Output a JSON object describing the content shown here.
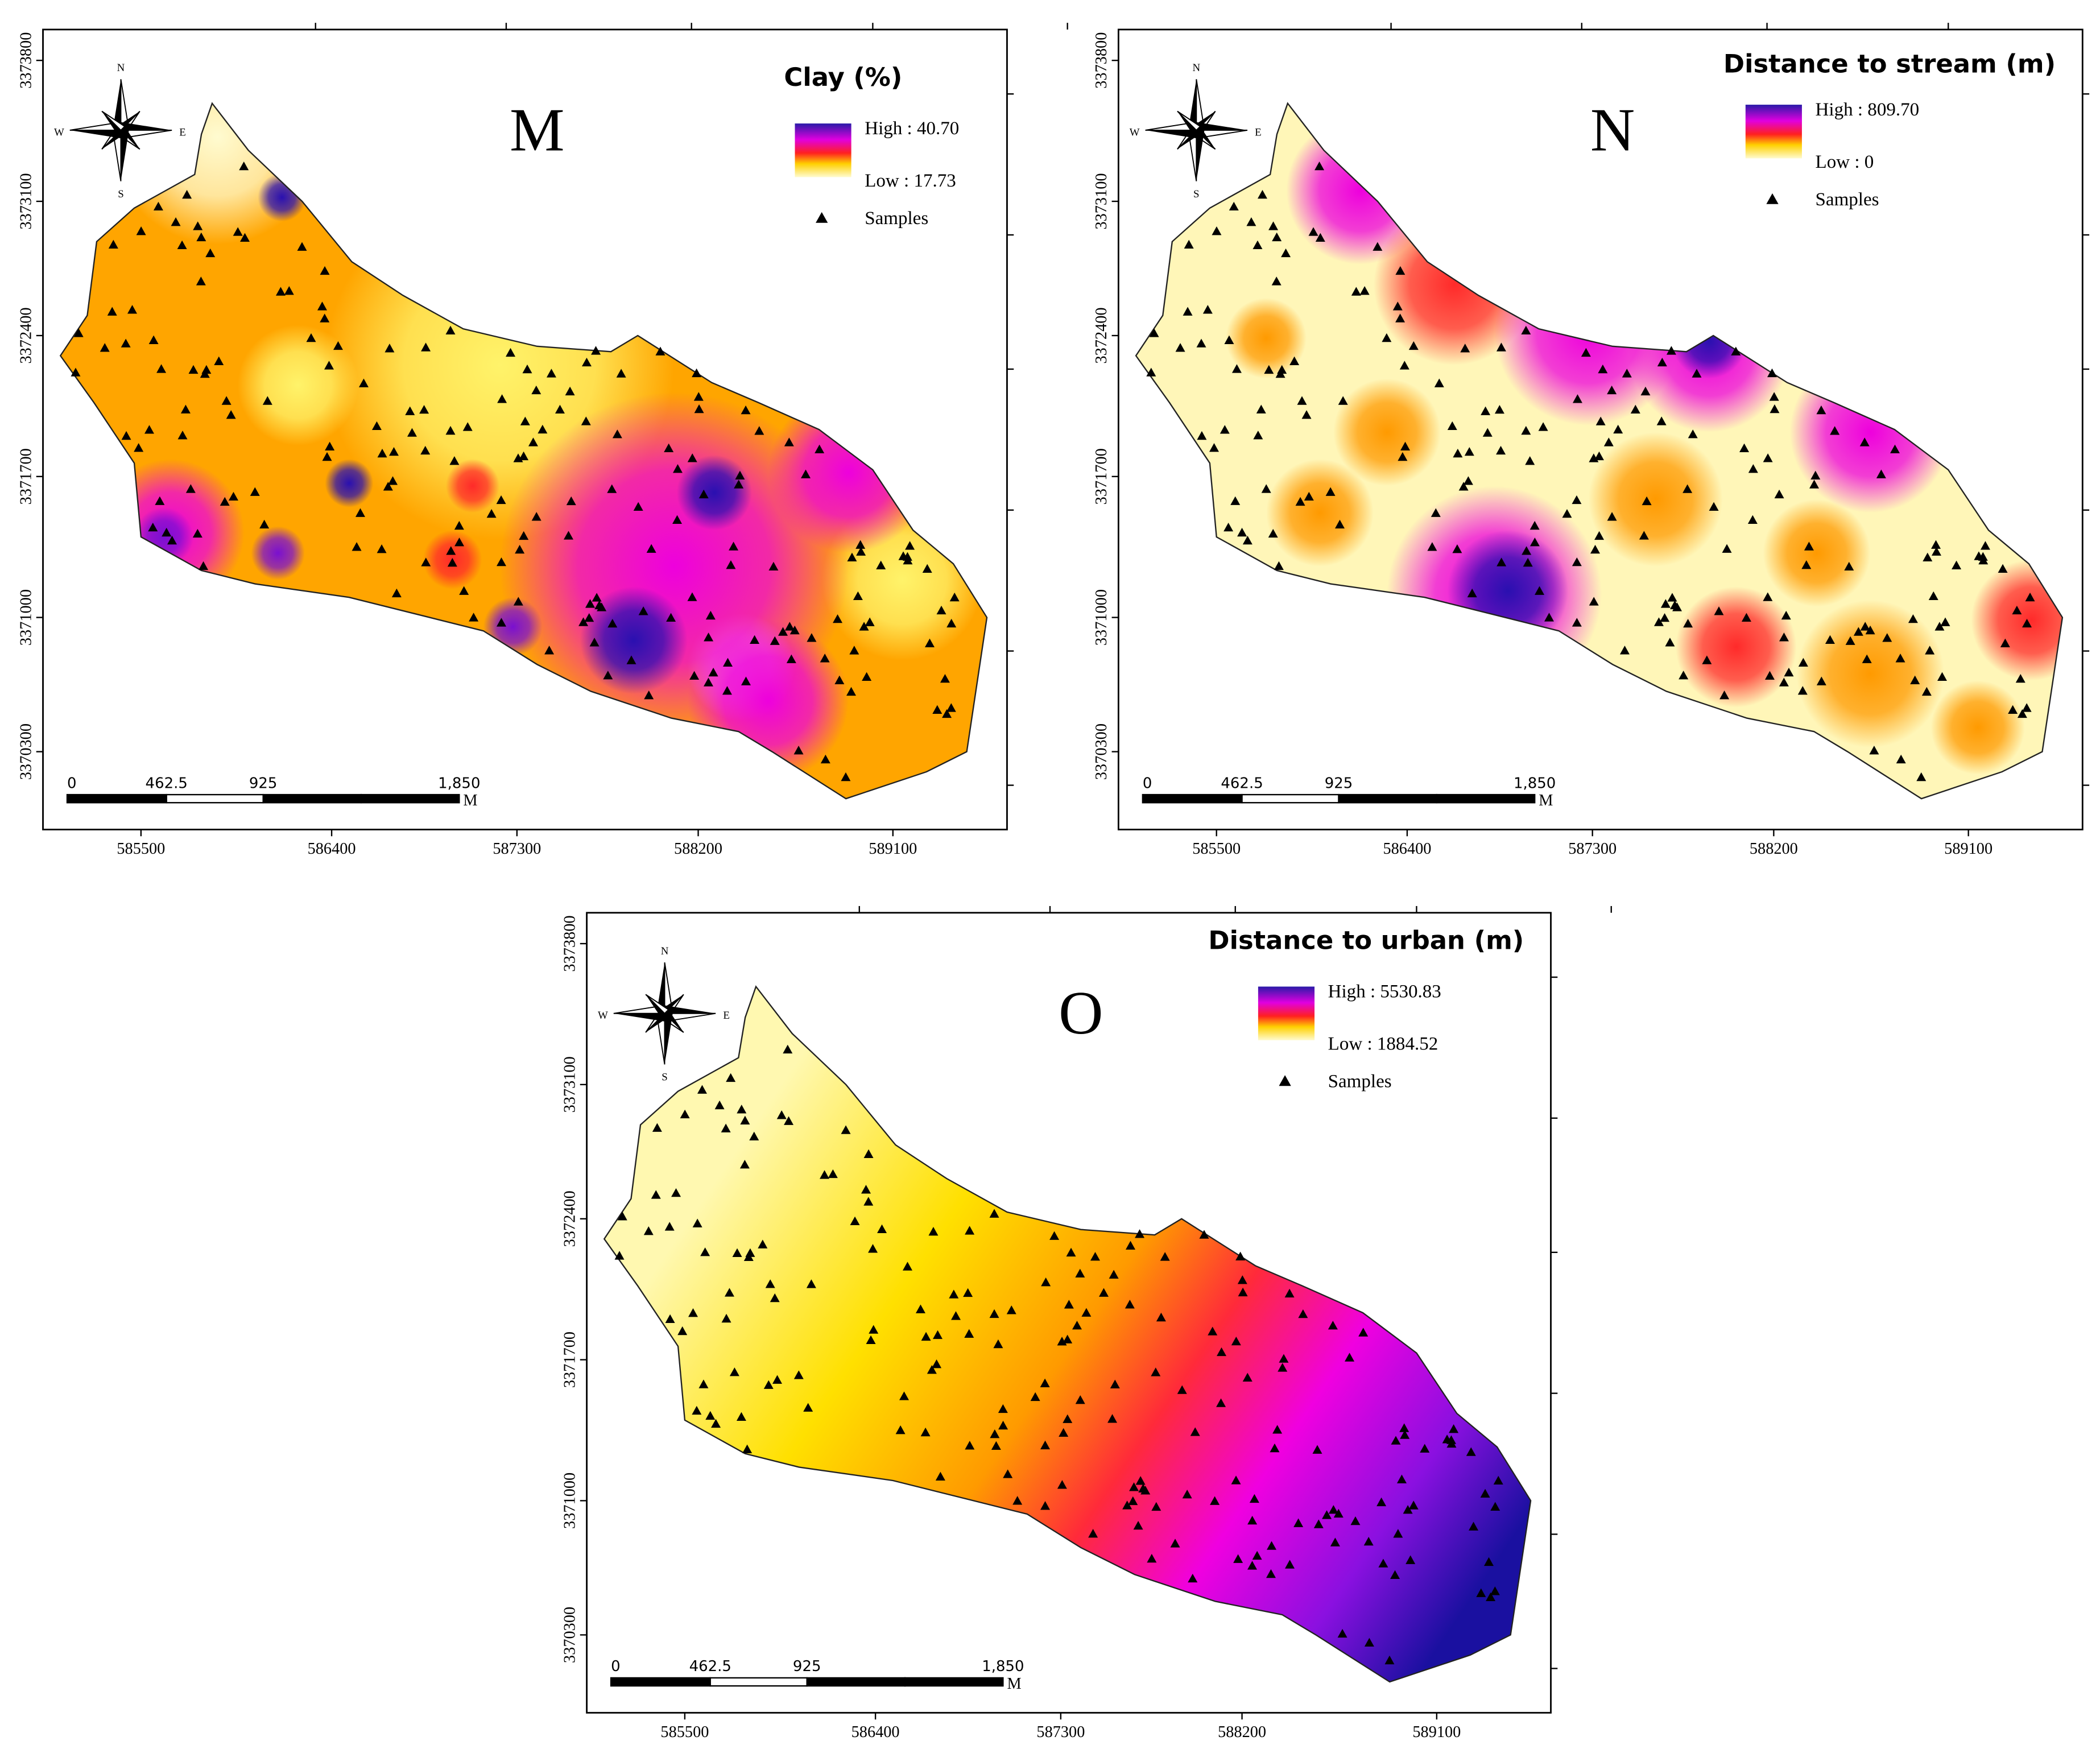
{
  "panels": [
    {
      "letter": "M",
      "legend_title": "Clay (%)",
      "legend_high": "High : 40.70",
      "legend_low": "Low : 17.73",
      "legend_samples": "Samples",
      "scale_labels": [
        0,
        462.5,
        925,
        {
          "value": 1850,
          "label": "1,850"
        }
      ],
      "scale_unit": "M",
      "x_ticks": [
        585500,
        586400,
        587300,
        588200,
        589100
      ],
      "y_ticks": [
        3373800,
        3373100,
        3372400,
        3371700,
        3371000,
        3370300
      ]
    },
    {
      "letter": "N",
      "legend_title": "Distance to stream (m)",
      "legend_high": "High : 809.70",
      "legend_low": "Low : 0",
      "legend_samples": "Samples",
      "scale_labels": [
        0,
        462.5,
        925,
        {
          "value": 1850,
          "label": "1,850"
        }
      ],
      "scale_unit": "M",
      "x_ticks": [
        585500,
        586400,
        587300,
        588200,
        589100
      ],
      "y_ticks": [
        3373800,
        3373100,
        3372400,
        3371700,
        3371000,
        3370300
      ]
    },
    {
      "letter": "O",
      "legend_title": "Distance to urban (m)",
      "legend_high": "High : 5530.83",
      "legend_low": "Low : 1884.52",
      "legend_samples": "Samples",
      "scale_labels": [
        0,
        462.5,
        925,
        {
          "value": 1850,
          "label": "1,850"
        }
      ],
      "scale_unit": "M",
      "x_ticks": [
        585500,
        586400,
        587300,
        588200,
        589100
      ],
      "y_ticks": [
        3373800,
        3373100,
        3372400,
        3371700,
        3371000,
        3370300
      ]
    }
  ]
}
